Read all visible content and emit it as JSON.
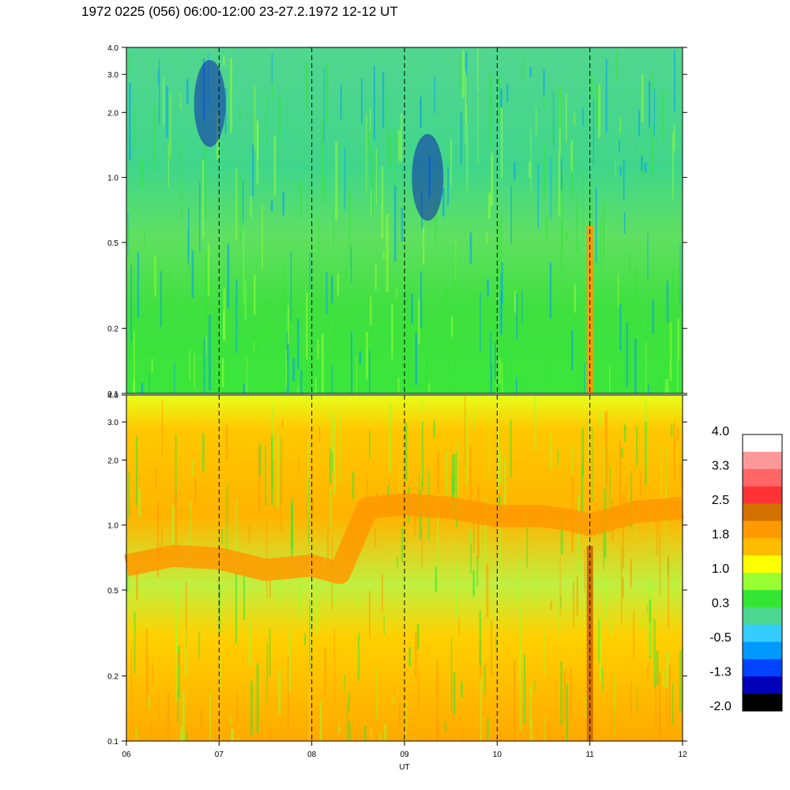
{
  "title": "1972 0225 (056) 06:00-12:00 23-27.2.1972  12-12 UT",
  "chart_data": [
    {
      "type": "heatmap",
      "title": "",
      "xlabel": "",
      "ylabel": "",
      "y_scale": "log",
      "ylim": [
        0.1,
        4.0
      ],
      "xlim": [
        6,
        12
      ],
      "y_ticks": [
        "0.1",
        "0.2",
        "0.5",
        "1.0",
        "2.0",
        "3.0",
        "4.0"
      ],
      "dashed_vlines": [
        7,
        8,
        9,
        10,
        11
      ],
      "dominant_levels": [
        "0.3",
        "-0.5",
        "1.0"
      ],
      "features": [
        {
          "name": "blue-low-patch",
          "x": 6.9,
          "y": 2.2,
          "level": -1.3
        },
        {
          "name": "blue-low-patch",
          "x": 9.25,
          "y": 1.0,
          "level": -1.3
        },
        {
          "name": "enhancement-streak",
          "x": 11.0,
          "y_range": [
            0.1,
            0.6
          ],
          "level": 1.8
        }
      ]
    },
    {
      "type": "heatmap",
      "title": "",
      "xlabel": "UT",
      "ylabel": "",
      "y_scale": "log",
      "ylim": [
        0.1,
        4.0
      ],
      "xlim": [
        6,
        12
      ],
      "x_ticks": [
        "06",
        "07",
        "08",
        "09",
        "10",
        "11",
        "12"
      ],
      "y_ticks": [
        "0.1",
        "0.2",
        "0.5",
        "1.0",
        "2.0",
        "3.0",
        "4.0"
      ],
      "dashed_vlines": [
        7,
        8,
        9,
        10,
        11
      ],
      "dominant_levels": [
        "1.8",
        "1.0",
        "0.3"
      ],
      "band": {
        "level": 1.8,
        "points": [
          [
            6.0,
            0.65
          ],
          [
            6.5,
            0.72
          ],
          [
            7.0,
            0.7
          ],
          [
            7.5,
            0.62
          ],
          [
            8.0,
            0.65
          ],
          [
            8.3,
            0.6
          ],
          [
            8.6,
            1.2
          ],
          [
            9.0,
            1.25
          ],
          [
            9.5,
            1.2
          ],
          [
            10.0,
            1.1
          ],
          [
            10.5,
            1.1
          ],
          [
            10.8,
            1.05
          ],
          [
            11.0,
            1.0
          ],
          [
            11.5,
            1.15
          ],
          [
            12.0,
            1.2
          ]
        ]
      },
      "features": [
        {
          "name": "enhancement-streak",
          "x": 11.0,
          "y_range": [
            0.1,
            0.8
          ],
          "level": 2.5
        }
      ]
    }
  ],
  "colorbar": {
    "labels": [
      "4.0",
      "3.3",
      "2.5",
      "1.8",
      "1.0",
      "0.3",
      "-0.5",
      "-1.3",
      "-2.0"
    ],
    "colors": [
      "#ffffff",
      "#ff9999",
      "#ff6666",
      "#ff3333",
      "#d27000",
      "#ff9900",
      "#ffbb00",
      "#ffff00",
      "#99ff33",
      "#33e633",
      "#4dd68f",
      "#33ccff",
      "#0099ff",
      "#0044ff",
      "#0000bb",
      "#000000"
    ]
  }
}
